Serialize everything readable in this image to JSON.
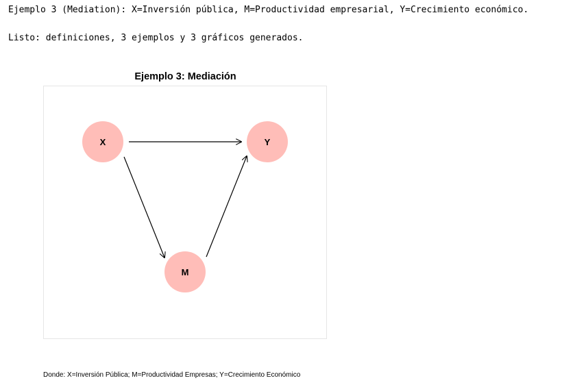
{
  "console": {
    "line1": "Ejemplo 3 (Mediation): X=Inversión pública, M=Productividad empresarial, Y=Crecimiento económico.",
    "line2": "Listo: definiciones, 3 ejemplos y 3 gráficos generados."
  },
  "diagram": {
    "title": "Ejemplo 3: Mediación",
    "node_color": "#ffbdb8",
    "edge_color": "#000000",
    "nodes": [
      {
        "id": "X",
        "label": "X"
      },
      {
        "id": "Y",
        "label": "Y"
      },
      {
        "id": "M",
        "label": "M"
      }
    ],
    "edges": [
      {
        "from": "X",
        "to": "Y"
      },
      {
        "from": "X",
        "to": "M"
      },
      {
        "from": "M",
        "to": "Y"
      }
    ],
    "caption": "Donde: X=Inversión Pública; M=Productividad Empresas; Y=Crecimiento Económico"
  }
}
